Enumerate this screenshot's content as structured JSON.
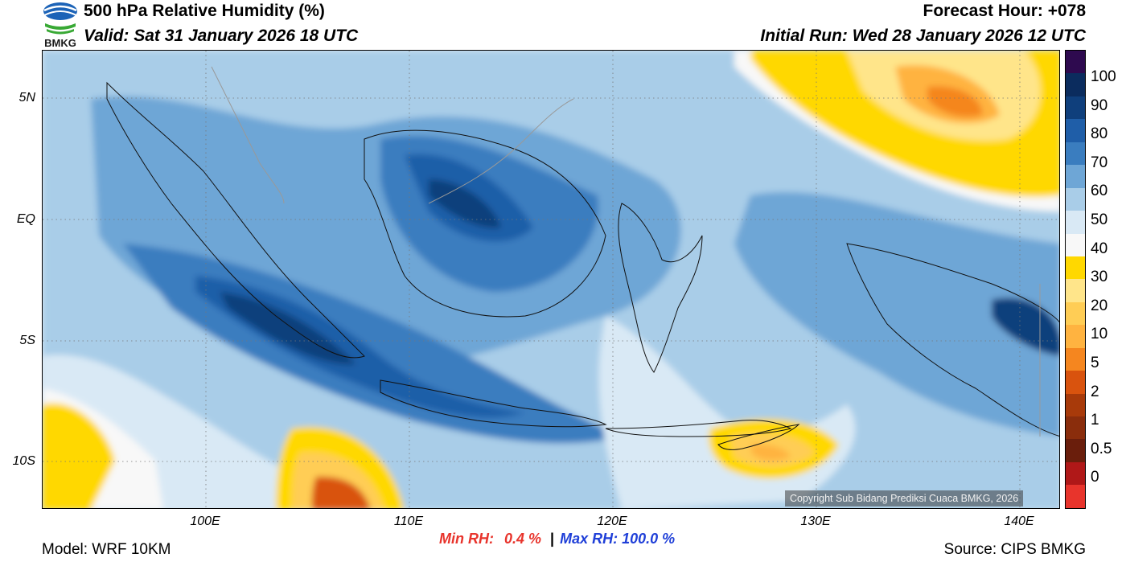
{
  "header": {
    "title": "500 hPa Relative Humidity (%)",
    "valid": "Valid: Sat 31 January 2026 18 UTC",
    "forecast_hour": "Forecast Hour: +078",
    "initial_run": "Initial Run: Wed 28 January 2026 12 UTC",
    "logo_text": "BMKG"
  },
  "axes": {
    "lat_labels": [
      "5N",
      "EQ",
      "5S",
      "10S"
    ],
    "lon_labels": [
      "100E",
      "110E",
      "120E",
      "130E",
      "140E"
    ]
  },
  "colorbar": {
    "labels": [
      "100",
      "90",
      "80",
      "70",
      "60",
      "50",
      "40",
      "30",
      "20",
      "10",
      "5",
      "2",
      "1",
      "0.5",
      "0"
    ],
    "colors": [
      "#2e0a4f",
      "#0b2c5e",
      "#0f3f7c",
      "#1f5ea8",
      "#3a7dbf",
      "#6ea6d6",
      "#a9cde8",
      "#d9e9f5",
      "#f8f8f8",
      "#ffd800",
      "#ffe58a",
      "#ffcd55",
      "#ffb340",
      "#f5861f",
      "#d9530e",
      "#a83a0a",
      "#8a2d0c",
      "#6a1e0c",
      "#b01818",
      "#e8342c"
    ]
  },
  "copyright": "Copyright Sub Bidang Prediksi Cuaca BMKG, 2026",
  "footer": {
    "model": "Model: WRF 10KM",
    "source": "Source: CIPS BMKG",
    "min_label": "Min RH:",
    "min_value": "0.4 %",
    "separator": "|",
    "max_label": "Max RH:",
    "max_value": "100.0 %"
  },
  "colors": {
    "min": "#e8342c",
    "max": "#1f3fd8"
  }
}
